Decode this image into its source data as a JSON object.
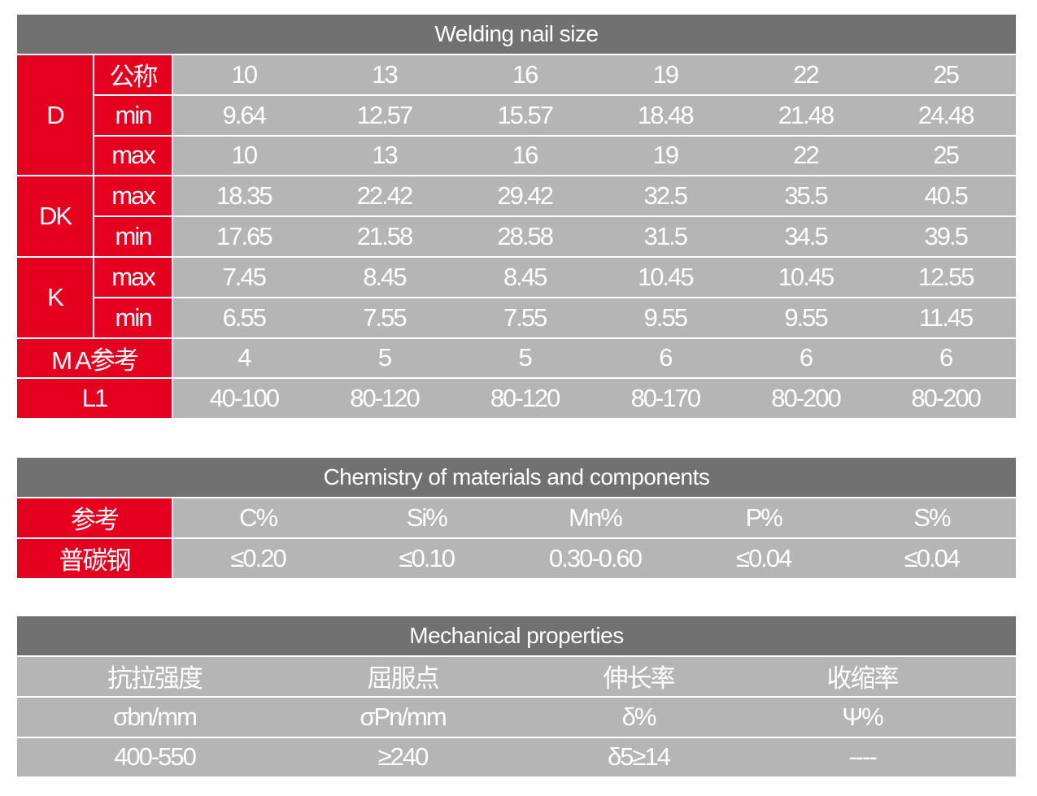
{
  "size_table": {
    "title": "Welding nail size",
    "groups": [
      {
        "label": "D",
        "rows": [
          {
            "label": "公称",
            "values": [
              "10",
              "13",
              "16",
              "19",
              "22",
              "25"
            ]
          },
          {
            "label": "min",
            "values": [
              "9.64",
              "12.57",
              "15.57",
              "18.48",
              "21.48",
              "24.48"
            ]
          },
          {
            "label": "max",
            "values": [
              "10",
              "13",
              "16",
              "19",
              "22",
              "25"
            ]
          }
        ]
      },
      {
        "label": "DK",
        "rows": [
          {
            "label": "max",
            "values": [
              "18.35",
              "22.42",
              "29.42",
              "32.5",
              "35.5",
              "40.5"
            ]
          },
          {
            "label": "min",
            "values": [
              "17.65",
              "21.58",
              "28.58",
              "31.5",
              "34.5",
              "39.5"
            ]
          }
        ]
      },
      {
        "label": "K",
        "rows": [
          {
            "label": "max",
            "values": [
              "7.45",
              "8.45",
              "8.45",
              "10.45",
              "10.45",
              "12.55"
            ]
          },
          {
            "label": "min",
            "values": [
              "6.55",
              "7.55",
              "7.55",
              "9.55",
              "9.55",
              "11.45"
            ]
          }
        ]
      }
    ],
    "single_rows": [
      {
        "label": "M A参考",
        "values": [
          "4",
          "5",
          "5",
          "6",
          "6",
          "6"
        ]
      },
      {
        "label": "L1",
        "values": [
          "40-100",
          "80-120",
          "80-120",
          "80-170",
          "80-200",
          "80-200"
        ]
      }
    ]
  },
  "chemistry_table": {
    "title": "Chemistry of materials and components",
    "rows": [
      {
        "label": "参考",
        "values": [
          "C%",
          "Si%",
          "Mn%",
          "P%",
          "S%"
        ]
      },
      {
        "label": "普碳钢",
        "values": [
          "≤0.20",
          "≤0.10",
          "0.30-0.60",
          "≤0.04",
          "≤0.04"
        ]
      }
    ]
  },
  "mechanical_table": {
    "title": "Mechanical properties",
    "rows": [
      [
        "抗拉强度",
        "屈服点",
        "伸长率",
        "收缩率"
      ],
      [
        "σbn/mm",
        "σPn/mm",
        "δ%",
        "Ψ%"
      ],
      [
        "400-550",
        "≥240",
        "δ5≥14",
        "----"
      ]
    ]
  },
  "colors": {
    "red": "#e60020",
    "header_gray": "#727171",
    "cell_gray": "#b5b5b5"
  }
}
